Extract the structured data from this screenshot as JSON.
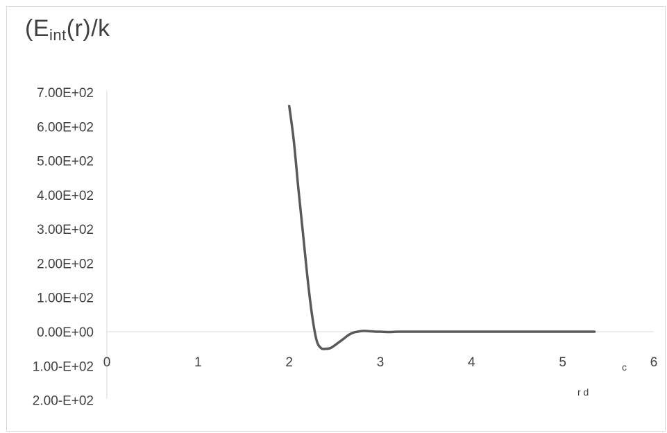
{
  "chart_data": {
    "type": "line",
    "title_parts": [
      "(E",
      "int",
      "(r)/k"
    ],
    "xlabel": "r   d",
    "xlabel_fragment_top": "c",
    "y_tick_labels": [
      "7.00E+02",
      "6.00E+02",
      "5.00E+02",
      "4.00E+02",
      "3.00E+02",
      "2.00E+02",
      "1.00E+02",
      "0.00E+00",
      "1.00-E+02",
      "2.00-E+02"
    ],
    "y_tick_values": [
      700,
      600,
      500,
      400,
      300,
      200,
      100,
      0,
      -100,
      -200
    ],
    "x_tick_labels": [
      "0",
      "1",
      "2",
      "3",
      "4",
      "5",
      "6"
    ],
    "x_tick_values": [
      0,
      1,
      2,
      3,
      4,
      5,
      6
    ],
    "xlim": [
      0,
      6
    ],
    "ylim": [
      -200,
      700
    ],
    "grid": false,
    "line_color": "#595959",
    "axis_color": "#d9d9d9",
    "series": [
      {
        "x": [
          2.0,
          2.05,
          2.1,
          2.15,
          2.2,
          2.25,
          2.3,
          2.35,
          2.4,
          2.45,
          2.5,
          2.55,
          2.6,
          2.65,
          2.7,
          2.75,
          2.8,
          2.85,
          2.9,
          2.95,
          3.0,
          3.1,
          3.2,
          3.5,
          4.0,
          4.5,
          5.0,
          5.35
        ],
        "y": [
          660,
          560,
          420,
          290,
          160,
          50,
          -25,
          -48,
          -50,
          -48,
          -40,
          -30,
          -20,
          -10,
          -3,
          0,
          2,
          2,
          1,
          0,
          0,
          -1,
          0,
          0,
          0,
          0,
          0,
          0
        ]
      }
    ]
  }
}
